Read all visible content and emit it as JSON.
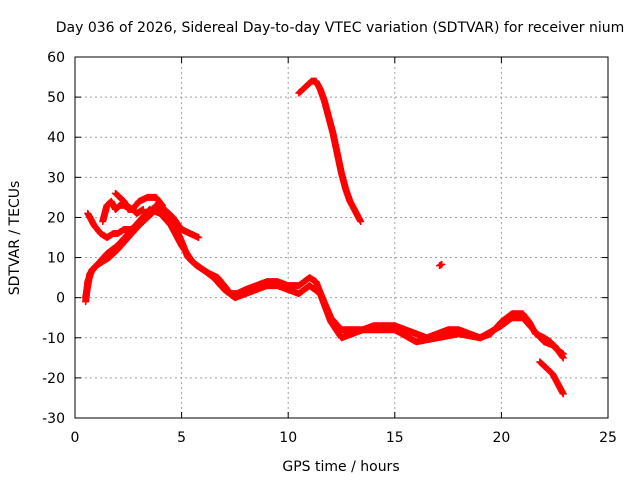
{
  "chart_data": {
    "type": "scatter",
    "title": "Day 036 of 2026, Sidereal Day-to-day VTEC variation (SDTVAR) for receiver nium",
    "xlabel": "GPS time / hours",
    "ylabel": "SDTVAR / TECUs",
    "xlim": [
      0,
      25
    ],
    "ylim": [
      -30,
      60
    ],
    "xticks": [
      0,
      5,
      10,
      15,
      20,
      25
    ],
    "yticks": [
      -30,
      -20,
      -10,
      0,
      10,
      20,
      30,
      40,
      50,
      60
    ],
    "grid": true,
    "marker": "plus",
    "color": "#ff0000",
    "series": [
      {
        "name": "main-band-upper",
        "x": [
          0.5,
          0.6,
          0.8,
          1.0,
          1.3,
          1.6,
          2.0,
          2.5,
          3.0,
          3.5,
          3.8,
          4.2,
          4.6,
          5.0,
          5.3,
          5.7,
          6.0,
          6.3,
          6.7,
          7.0,
          7.3,
          7.6,
          8.0,
          8.5,
          9.0,
          9.5,
          10.0,
          10.5,
          11.0,
          11.3,
          11.6,
          12.0,
          12.5,
          13.0,
          13.5,
          14.0,
          14.5,
          15.0,
          15.5,
          16.0,
          16.5,
          17.0,
          17.5,
          18.0,
          18.5,
          19.0,
          19.5,
          20.0,
          20.5,
          21.0,
          21.3,
          21.6,
          22.0,
          22.3,
          22.6,
          22.9
        ],
        "y": [
          -1,
          4,
          7,
          8,
          9,
          10,
          12,
          15,
          18,
          21,
          23,
          22,
          19,
          14,
          10,
          8,
          7,
          6,
          5,
          3,
          1,
          1,
          2,
          3,
          4,
          4,
          3,
          3,
          5,
          4,
          0,
          -5,
          -8,
          -8,
          -8,
          -7,
          -7,
          -7,
          -8,
          -9,
          -10,
          -9,
          -8,
          -8,
          -9,
          -10,
          -9,
          -6,
          -4,
          -4,
          -6,
          -9,
          -10,
          -11,
          -13,
          -14
        ]
      },
      {
        "name": "main-band-lower",
        "x": [
          0.5,
          0.7,
          1.0,
          1.5,
          2.0,
          2.5,
          3.0,
          3.5,
          4.0,
          4.5,
          5.0,
          5.5,
          6.0,
          6.5,
          7.0,
          7.5,
          8.0,
          8.5,
          9.0,
          9.5,
          10.0,
          10.5,
          11.0,
          11.5,
          12.0,
          12.5,
          13.0,
          13.5,
          14.0,
          15.0,
          16.0,
          17.0,
          18.0,
          19.0,
          20.0,
          20.5,
          21.0,
          21.5,
          22.0,
          22.5,
          22.9
        ],
        "y": [
          0,
          6,
          8,
          11,
          13,
          16,
          19,
          22,
          21,
          18,
          13,
          9,
          7,
          5,
          2,
          0,
          1,
          2,
          3,
          3,
          2,
          1,
          3,
          1,
          -6,
          -10,
          -9,
          -8,
          -8,
          -8,
          -11,
          -10,
          -9,
          -10,
          -7,
          -5,
          -5,
          -8,
          -11,
          -12,
          -15
        ]
      },
      {
        "name": "early-wave",
        "x": [
          0.6,
          0.9,
          1.2,
          1.5,
          1.8,
          2.0,
          2.3,
          2.6,
          3.0,
          3.4,
          3.8,
          4.2,
          4.6,
          5.0,
          5.4,
          5.8
        ],
        "y": [
          21,
          18,
          16,
          15,
          16,
          16,
          17,
          17,
          18,
          20,
          22,
          22,
          20,
          17,
          16,
          15
        ]
      },
      {
        "name": "early-peak",
        "x": [
          1.3,
          1.5,
          1.7,
          1.9,
          2.1,
          2.4,
          2.7,
          3.0,
          3.4,
          3.8,
          4.1
        ],
        "y": [
          19,
          23,
          24,
          22,
          23,
          23,
          22,
          24,
          25,
          25,
          23
        ]
      },
      {
        "name": "early-spike",
        "x": [
          1.9,
          2.1,
          2.3,
          2.5,
          2.7,
          2.9,
          3.2
        ],
        "y": [
          26,
          25,
          24,
          22,
          22,
          21,
          22
        ]
      },
      {
        "name": "high-arc",
        "x": [
          10.5,
          10.7,
          10.9,
          11.1,
          11.3,
          11.5,
          11.7,
          11.9,
          12.1,
          12.3,
          12.5,
          12.7,
          12.9,
          13.1,
          13.3,
          13.4
        ],
        "y": [
          51,
          52,
          53,
          54,
          54,
          52,
          49,
          45,
          41,
          36,
          31,
          27,
          24,
          22,
          20,
          19
        ]
      },
      {
        "name": "isolated-point",
        "x": [
          17.1,
          17.2
        ],
        "y": [
          8,
          8.3
        ]
      },
      {
        "name": "late-tail",
        "x": [
          21.8,
          22.0,
          22.2,
          22.4,
          22.6,
          22.8,
          22.9
        ],
        "y": [
          -16,
          -17,
          -18,
          -19,
          -21,
          -23,
          -24
        ]
      }
    ]
  }
}
